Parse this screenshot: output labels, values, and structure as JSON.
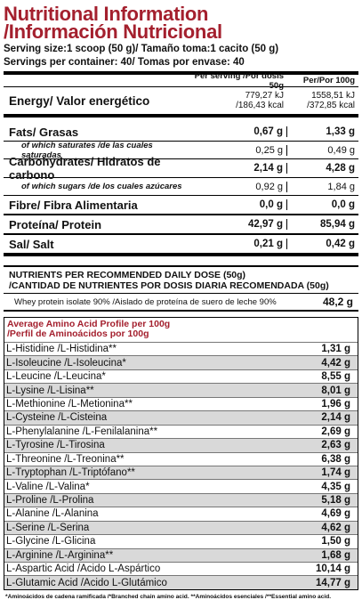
{
  "title": {
    "line1": "Nutritional Information",
    "line2": "/Información Nutricional"
  },
  "serving": {
    "line1": "Serving size:1 scoop (50 g)/ Tamaño toma:1 cacito (50 g)",
    "line2": "Servings per container: 40/ Tomas por envase: 40"
  },
  "columns": {
    "per_serving": "Per serving /Por dosis 50g",
    "per_100g": "Per/Por 100g"
  },
  "energy": {
    "label": "Energy/ Valor energético",
    "s_kj": "779,27 kJ",
    "s_kcal": "/186,43 kcal",
    "h_kj": "1558,51 kJ",
    "h_kcal": "/372,85 kcal"
  },
  "nutrients": [
    {
      "label": "Fats/ Grasas",
      "serving": "0,67 g",
      "per100": "1,33 g",
      "sub": false
    },
    {
      "label": "of which saturates /de las cuales saturadas",
      "serving": "0,25 g",
      "per100": "0,49 g",
      "sub": true
    },
    {
      "label": "Carbohydrates/ Hidratos de carbono",
      "serving": "2,14 g",
      "per100": "4,28 g",
      "sub": false
    },
    {
      "label": "of which sugars /de los cuales azúcares",
      "serving": "0,92 g",
      "per100": "1,84 g",
      "sub": true
    },
    {
      "label": "Fibre/ Fibra Alimentaria",
      "serving": "0,0 g",
      "per100": "0,0 g",
      "sub": false
    },
    {
      "label": "Proteína/ Protein",
      "serving": "42,97 g",
      "per100": "85,94 g",
      "sub": false
    },
    {
      "label": "Sal/ Salt",
      "serving": "0,21 g",
      "per100": "0,42 g",
      "sub": false
    }
  ],
  "rdd": {
    "line1": "NUTRIENTS PER RECOMMENDED DAILY DOSE (50g)",
    "line2": "/CANTIDAD DE NUTRIENTES POR DOSIS DIARIA RECOMENDADA (50g)",
    "item": "Whey protein isolate 90% /Aislado de proteína de suero de leche 90%",
    "value": "48,2 g"
  },
  "aa": {
    "title1": "Average Amino Acid Profile per 100g",
    "title2": "/Perfil de Aminoácidos por 100g",
    "rows": [
      {
        "name": "L-Histidine /L-Histidina**",
        "value": "1,31 g"
      },
      {
        "name": "L-Isoleucine /L-Isoleucina*",
        "value": "4,42 g"
      },
      {
        "name": "L-Leucine /L-Leucina*",
        "value": "8,55 g"
      },
      {
        "name": "L-Lysine /L-Lisina**",
        "value": "8,01 g"
      },
      {
        "name": "L-Methionine /L-Metionina**",
        "value": "1,96 g"
      },
      {
        "name": "L-Cysteine /L-Cisteina",
        "value": "2,14 g"
      },
      {
        "name": "L-Phenylalanine /L-Fenilalanina**",
        "value": "2,69 g"
      },
      {
        "name": "L-Tyrosine /L-Tirosina",
        "value": "2,63 g"
      },
      {
        "name": "L-Threonine /L-Treonina**",
        "value": "6,38 g"
      },
      {
        "name": "L-Tryptophan /L-Triptófano**",
        "value": "1,74 g"
      },
      {
        "name": "L-Valine /L-Valina*",
        "value": "4,35 g"
      },
      {
        "name": "L-Proline /L-Prolina",
        "value": "5,18 g"
      },
      {
        "name": "L-Alanine /L-Alanina",
        "value": "4,69 g"
      },
      {
        "name": "L-Serine /L-Serina",
        "value": "4,62 g"
      },
      {
        "name": "L-Glycine /L-Glicina",
        "value": "1,50 g"
      },
      {
        "name": "L-Arginine /L-Arginina**",
        "value": "1,68 g"
      },
      {
        "name": "L-Aspartic Acid /Acido L-Aspártico",
        "value": "10,14 g"
      },
      {
        "name": "L-Glutamic Acid /Acido L-Glutámico",
        "value": "14,77 g"
      }
    ]
  },
  "footnote": "*Aminoácidos de cadena ramificada /*Branched chain amino acid. **Aminoácidos esenciales /**Essential amino acid."
}
